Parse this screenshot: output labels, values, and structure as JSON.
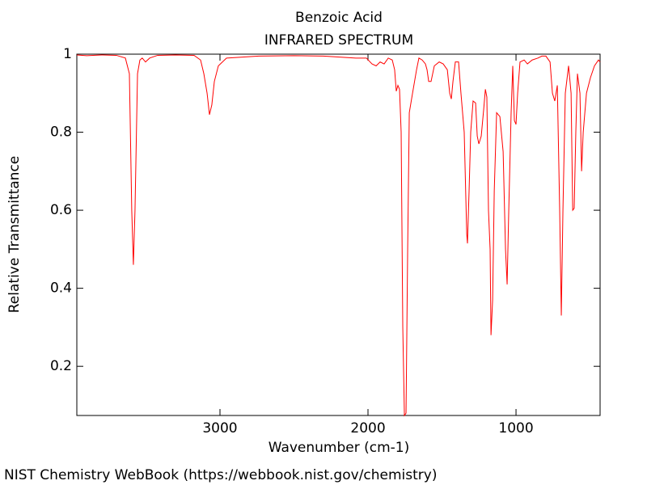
{
  "chart_data": {
    "type": "line",
    "title": "Benzoic Acid",
    "subtitle": "INFRARED SPECTRUM",
    "x_label": "Wavenumber (cm-1)",
    "y_label": "Relative Transmittance",
    "source": "NIST Chemistry WebBook (https://webbook.nist.gov/chemistry)",
    "color": "#ff0000",
    "xlim": [
      3967,
      432
    ],
    "ylim": [
      0.074,
      1
    ],
    "xticks": [
      3000,
      2000,
      1000
    ],
    "yticks": [
      0.2,
      0.4,
      0.6,
      0.8,
      1
    ],
    "x": [
      3967,
      3900,
      3800,
      3700,
      3639,
      3612,
      3596,
      3585,
      3574,
      3557,
      3541,
      3525,
      3503,
      3475,
      3421,
      3300,
      3175,
      3131,
      3109,
      3087,
      3071,
      3055,
      3038,
      3011,
      2956,
      2738,
      2500,
      2301,
      2082,
      2011,
      1973,
      1945,
      1918,
      1891,
      1863,
      1836,
      1820,
      1809,
      1798,
      1787,
      1776,
      1765,
      1754,
      1743,
      1732,
      1721,
      1699,
      1672,
      1656,
      1634,
      1612,
      1601,
      1590,
      1574,
      1552,
      1519,
      1492,
      1464,
      1448,
      1437,
      1426,
      1410,
      1388,
      1372,
      1350,
      1333,
      1328,
      1317,
      1306,
      1290,
      1273,
      1262,
      1251,
      1235,
      1218,
      1207,
      1197,
      1186,
      1175,
      1169,
      1158,
      1147,
      1131,
      1109,
      1087,
      1071,
      1060,
      1049,
      1033,
      1022,
      1011,
      1000,
      989,
      973,
      945,
      923,
      891,
      852,
      825,
      798,
      770,
      754,
      738,
      721,
      705,
      694,
      683,
      667,
      645,
      628,
      617,
      607,
      596,
      585,
      568,
      557,
      546,
      524,
      497,
      470,
      443,
      432
    ],
    "values": [
      0.998,
      0.996,
      0.998,
      0.997,
      0.99,
      0.95,
      0.6,
      0.46,
      0.6,
      0.95,
      0.985,
      0.99,
      0.98,
      0.99,
      0.997,
      0.998,
      0.997,
      0.985,
      0.95,
      0.9,
      0.845,
      0.87,
      0.93,
      0.97,
      0.99,
      0.995,
      0.996,
      0.995,
      0.99,
      0.99,
      0.975,
      0.97,
      0.98,
      0.975,
      0.99,
      0.985,
      0.96,
      0.905,
      0.92,
      0.91,
      0.8,
      0.3,
      0.074,
      0.08,
      0.5,
      0.85,
      0.9,
      0.96,
      0.99,
      0.985,
      0.975,
      0.96,
      0.93,
      0.93,
      0.97,
      0.98,
      0.975,
      0.96,
      0.9,
      0.885,
      0.93,
      0.98,
      0.98,
      0.9,
      0.8,
      0.54,
      0.515,
      0.65,
      0.8,
      0.88,
      0.875,
      0.79,
      0.77,
      0.79,
      0.86,
      0.91,
      0.89,
      0.6,
      0.5,
      0.28,
      0.37,
      0.65,
      0.85,
      0.84,
      0.75,
      0.5,
      0.41,
      0.6,
      0.85,
      0.97,
      0.83,
      0.82,
      0.9,
      0.98,
      0.985,
      0.975,
      0.985,
      0.99,
      0.995,
      0.995,
      0.98,
      0.9,
      0.88,
      0.92,
      0.6,
      0.33,
      0.6,
      0.9,
      0.97,
      0.9,
      0.6,
      0.605,
      0.8,
      0.95,
      0.9,
      0.7,
      0.8,
      0.9,
      0.94,
      0.97,
      0.985,
      0.98
    ]
  }
}
